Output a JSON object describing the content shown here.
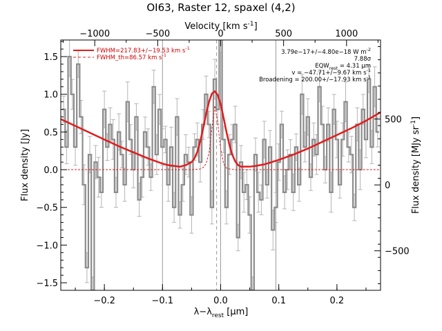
{
  "chart_data": {
    "type": "line",
    "title": "OI63, Raster 12, spaxel (4,2)",
    "xlabel": "λ−λ",
    "xlabel_sub": "rest",
    "xlabel_unit": " [μm]",
    "ylabel": "Flux density [Jy]",
    "ylabel_right": "Flux density [MJy sr",
    "ylabel_right_sup": "-1",
    "ylabel_right_end": "]",
    "top_axis_label": "Velocity [km s",
    "top_axis_sup": "-1",
    "top_axis_end": "]",
    "xlim": [
      -0.275,
      0.275
    ],
    "ylim": [
      -1.6,
      1.72
    ],
    "right_ylim": [
      -800,
      1100
    ],
    "top_xlim": [
      -1270,
      1270
    ],
    "xticks": [
      -0.2,
      -0.1,
      0.0,
      0.1,
      0.2
    ],
    "xtick_labels": [
      "−0.2",
      "−0.1",
      "0.0",
      "0.1",
      "0.2"
    ],
    "yticks": [
      -1.5,
      -1.0,
      -0.5,
      0.0,
      0.5,
      1.0,
      1.5
    ],
    "ytick_labels": [
      "−1.5",
      "−1.0",
      "−0.5",
      "0.0",
      "0.5",
      "1.0",
      "1.5"
    ],
    "right_yticks": [
      -500,
      0,
      500
    ],
    "right_ytick_labels": [
      "−500",
      "0",
      "500"
    ],
    "top_xticks": [
      -1000,
      -500,
      0,
      500,
      1000
    ],
    "top_xtick_labels": [
      "−1000",
      "−500",
      "0",
      "500",
      "1000"
    ],
    "vertical_lines_solid": [
      -0.1,
      0.0,
      0.095
    ],
    "vertical_line_dashed": -0.007,
    "legend": [
      {
        "text": "FWHM=217.83+/−19.53 km s",
        "sup": "-1",
        "style": "solid"
      },
      {
        "text": "FWHM_th=86.57 km s",
        "sup": "-1",
        "style": "dashed"
      }
    ],
    "annotations": [
      {
        "text": "3.79e−17+/−4.80e−18 W m",
        "sup": "-2"
      },
      {
        "text": "7.88σ",
        "sup": ""
      },
      {
        "text": "EQW",
        "sub": "rest",
        "text2": " = 4.31 μm"
      },
      {
        "text": "v = −47.71+/−9.67 km s",
        "sup": "-1"
      },
      {
        "text": "Broadening = 200.00+/−17.93 km s",
        "sup": "-1"
      }
    ],
    "series": [
      {
        "kind": "data-steps",
        "x": [
          -0.27,
          -0.265,
          -0.26,
          -0.255,
          -0.25,
          -0.245,
          -0.24,
          -0.235,
          -0.23,
          -0.225,
          -0.22,
          -0.215,
          -0.21,
          -0.205,
          -0.2,
          -0.195,
          -0.19,
          -0.185,
          -0.18,
          -0.175,
          -0.17,
          -0.165,
          -0.16,
          -0.155,
          -0.15,
          -0.145,
          -0.14,
          -0.135,
          -0.13,
          -0.125,
          -0.12,
          -0.115,
          -0.11,
          -0.105,
          -0.1,
          -0.095,
          -0.09,
          -0.085,
          -0.08,
          -0.075,
          -0.07,
          -0.065,
          -0.06,
          -0.055,
          -0.05,
          -0.045,
          -0.04,
          -0.035,
          -0.03,
          -0.025,
          -0.02,
          -0.015,
          -0.01,
          -0.005,
          0.0,
          0.005,
          0.01,
          0.015,
          0.02,
          0.025,
          0.03,
          0.035,
          0.04,
          0.045,
          0.05,
          0.055,
          0.06,
          0.065,
          0.07,
          0.075,
          0.08,
          0.085,
          0.09,
          0.095,
          0.1,
          0.105,
          0.11,
          0.115,
          0.12,
          0.125,
          0.13,
          0.135,
          0.14,
          0.145,
          0.15,
          0.155,
          0.16,
          0.165,
          0.17,
          0.175,
          0.18,
          0.185,
          0.19,
          0.195,
          0.2,
          0.205,
          0.21,
          0.215,
          0.22,
          0.225,
          0.23,
          0.235,
          0.24,
          0.245,
          0.25,
          0.255,
          0.26,
          0.265,
          0.27
        ],
        "values": [
          0.8,
          0.3,
          1.5,
          1.0,
          0.3,
          1.4,
          0.7,
          -0.2,
          -1.3,
          0.2,
          -1.6,
          0.1,
          -0.1,
          -0.3,
          0.8,
          0.3,
          0.6,
          0.4,
          -0.3,
          0.5,
          0.2,
          -0.2,
          0.9,
          0.4,
          0.0,
          0.7,
          -0.4,
          -0.1,
          0.5,
          0.3,
          -0.1,
          1.1,
          0.2,
          0.8,
          0.3,
          0.4,
          -0.2,
          0.3,
          -0.5,
          0.7,
          -0.6,
          -0.2,
          0.2,
          0.1,
          -0.6,
          0.3,
          0.4,
          0.1,
          0.6,
          1.0,
          0.6,
          -0.5,
          1.2,
          0.8,
          1.8,
          0.4,
          -0.5,
          0.2,
          0.4,
          0.6,
          -0.9,
          0.1,
          -0.3,
          -0.2,
          -0.6,
          -1.6,
          0.2,
          -0.3,
          -0.4,
          0.4,
          -0.2,
          0.3,
          -0.8,
          -0.5,
          0.1,
          0.6,
          -0.3,
          0.0,
          0.2,
          -0.3,
          0.3,
          -0.2,
          1.0,
          0.3,
          0.7,
          -0.1,
          0.4,
          0.2,
          1.1,
          0.6,
          0.0,
          0.6,
          -0.3,
          0.8,
          0.4,
          -0.2,
          0.4,
          0.9,
          0.3,
          0.2,
          -0.5,
          0.6,
          0.0,
          0.8,
          0.4,
          1.2,
          0.3,
          1.1,
          0.5
        ],
        "error": 0.22
      },
      {
        "kind": "fit-total",
        "x": [
          -0.275,
          -0.25,
          -0.225,
          -0.2,
          -0.175,
          -0.15,
          -0.125,
          -0.1,
          -0.09,
          -0.08,
          -0.07,
          -0.06,
          -0.05,
          -0.045,
          -0.04,
          -0.035,
          -0.03,
          -0.025,
          -0.02,
          -0.015,
          -0.01,
          -0.005,
          0.0,
          0.005,
          0.01,
          0.015,
          0.02,
          0.025,
          0.03,
          0.035,
          0.04,
          0.05,
          0.06,
          0.075,
          0.1,
          0.125,
          0.15,
          0.175,
          0.2,
          0.225,
          0.25,
          0.275
        ],
        "values": [
          0.67,
          0.58,
          0.49,
          0.4,
          0.31,
          0.23,
          0.15,
          0.08,
          0.06,
          0.05,
          0.04,
          0.06,
          0.1,
          0.15,
          0.24,
          0.38,
          0.55,
          0.74,
          0.9,
          1.01,
          1.04,
          0.99,
          0.87,
          0.69,
          0.5,
          0.33,
          0.2,
          0.11,
          0.06,
          0.04,
          0.04,
          0.04,
          0.05,
          0.07,
          0.13,
          0.2,
          0.28,
          0.37,
          0.46,
          0.55,
          0.65,
          0.76
        ]
      },
      {
        "kind": "fit-thermal",
        "x": [
          -0.275,
          -0.2,
          -0.1,
          -0.05,
          -0.035,
          -0.03,
          -0.025,
          -0.02,
          -0.015,
          -0.01,
          -0.005,
          0.0,
          0.005,
          0.01,
          0.015,
          0.025,
          0.05,
          0.1,
          0.2,
          0.275
        ],
        "values": [
          0.0,
          0.0,
          0.0,
          0.0,
          0.01,
          0.03,
          0.08,
          0.22,
          0.55,
          0.85,
          0.62,
          0.28,
          0.08,
          0.02,
          0.01,
          0.0,
          0.0,
          0.0,
          0.0,
          0.0
        ]
      }
    ]
  },
  "colors": {
    "data": "#8c8c8c",
    "error": "#b4b4b4",
    "fit": "#e31a1c",
    "axes": "#000000",
    "vline": "#9a9a9a"
  }
}
